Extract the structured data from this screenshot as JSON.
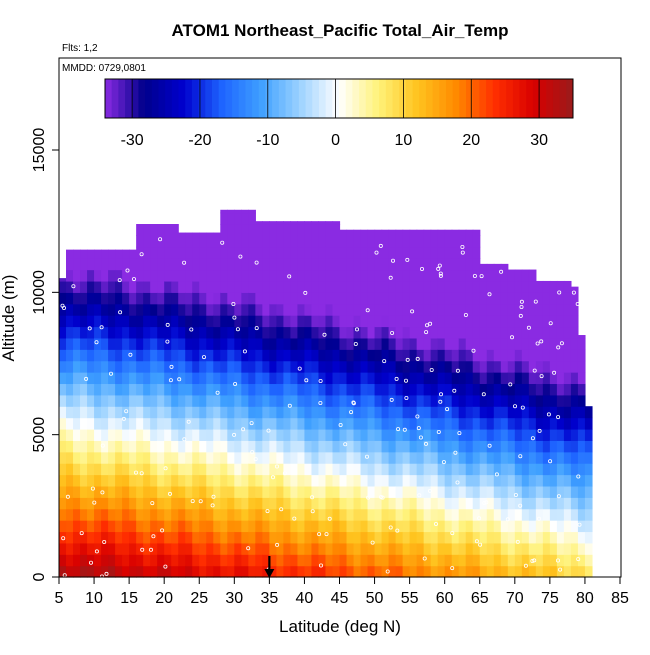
{
  "chart_data": {
    "type": "heatmap",
    "title": "ATOM1 Northeast_Pacific Total_Air_Temp",
    "annotations": {
      "flights": "Flts: 1,2",
      "dates": "MMDD: 0729,0801"
    },
    "xlabel": "Latitude (deg N)",
    "ylabel": "Altitude (m)",
    "xlim": [
      5,
      85
    ],
    "ylim": [
      0,
      17500
    ],
    "x_ticks": [
      "5",
      "10",
      "15",
      "20",
      "25",
      "30",
      "35",
      "40",
      "45",
      "50",
      "55",
      "60",
      "65",
      "70",
      "75",
      "80",
      "85"
    ],
    "y_ticks": [
      "0",
      "5000",
      "10000",
      "15000"
    ],
    "colorbar": {
      "range": [
        -34,
        35
      ],
      "ticks": [
        "-30",
        "-20",
        "-10",
        "0",
        "10",
        "20",
        "30"
      ],
      "colors": [
        "#8a2be2",
        "#00008b",
        "#0000cd",
        "#1e64ff",
        "#3fa0ff",
        "#9cd2ff",
        "#ffffff",
        "#fff27a",
        "#ffc41f",
        "#ff8a00",
        "#ff2e00",
        "#d80000",
        "#9a1b1b"
      ]
    },
    "marker_latitude": 35,
    "model": {
      "surface_temp_south": 34,
      "surface_temp_north": 10,
      "lapse_rate_c_per_km": 6.3,
      "top_altitude_by_latitude": [
        [
          5,
          10500
        ],
        [
          6,
          11500
        ],
        [
          15,
          11500
        ],
        [
          16,
          12400
        ],
        [
          21,
          12400
        ],
        [
          22,
          12100
        ],
        [
          27,
          12100
        ],
        [
          28,
          12900
        ],
        [
          32,
          12900
        ],
        [
          33,
          12500
        ],
        [
          44,
          12500
        ],
        [
          45,
          12200
        ],
        [
          64,
          12200
        ],
        [
          65,
          11000
        ],
        [
          68,
          11000
        ],
        [
          69,
          10800
        ],
        [
          72,
          10800
        ],
        [
          73,
          10400
        ],
        [
          78,
          10200
        ],
        [
          79,
          8500
        ],
        [
          80,
          6000
        ],
        [
          81,
          0
        ]
      ]
    }
  }
}
